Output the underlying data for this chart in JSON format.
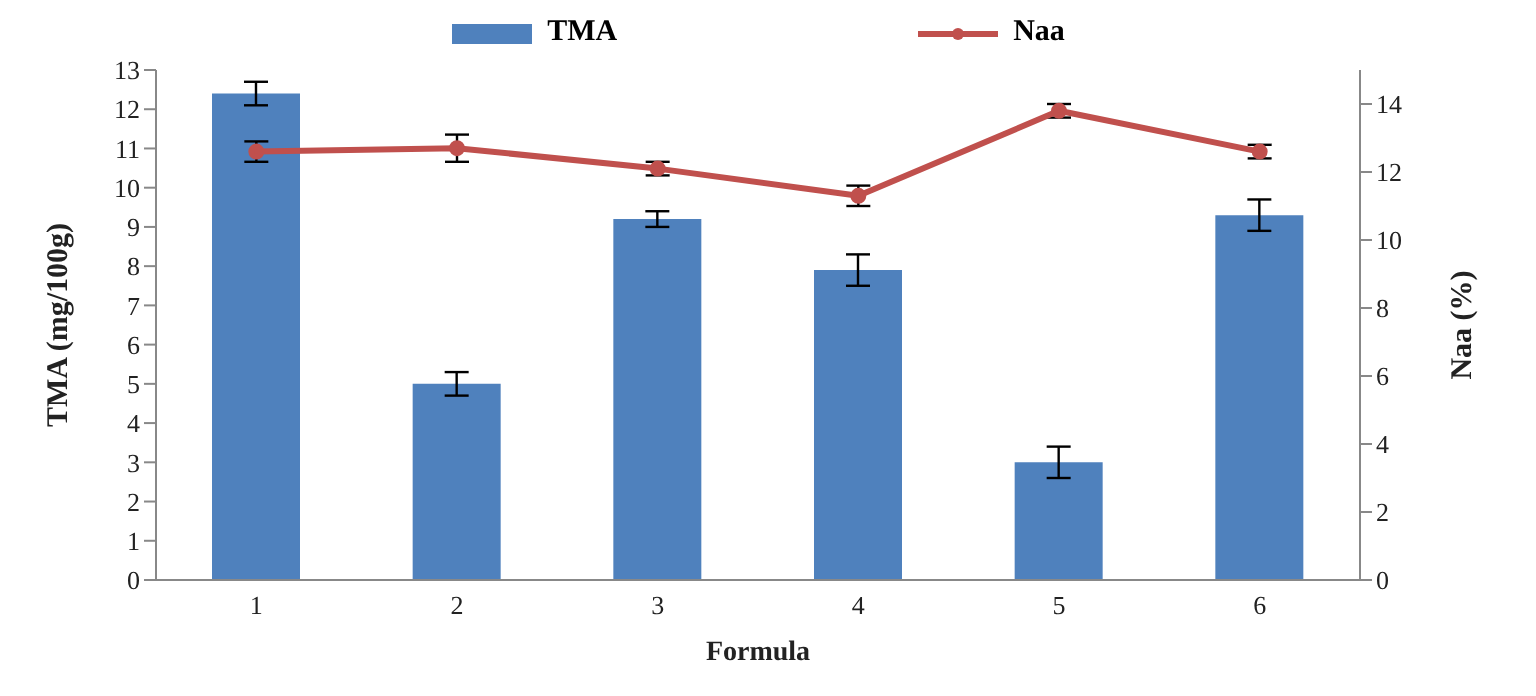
{
  "chart_data": {
    "type": "bar",
    "xlabel": "Formula",
    "ylabel": "TMA  (mg/100g)",
    "y2label": "Naa (%)",
    "categories": [
      "1",
      "2",
      "3",
      "4",
      "5",
      "6"
    ],
    "series": [
      {
        "name": "TMA",
        "color": "#4f81bd",
        "values": [
          12.4,
          5.0,
          9.2,
          7.9,
          3.0,
          9.3
        ],
        "errors": [
          0.3,
          0.3,
          0.2,
          0.4,
          0.4,
          0.4
        ]
      },
      {
        "name": "Naa",
        "type": "line",
        "axis": "y2",
        "color": "#c0504d",
        "values": [
          12.6,
          12.7,
          12.1,
          11.3,
          13.8,
          12.6
        ],
        "errors": [
          0.3,
          0.4,
          0.2,
          0.3,
          0.2,
          0.2
        ]
      }
    ],
    "ylim": [
      0,
      13
    ],
    "yticks": [
      0,
      1,
      2,
      3,
      4,
      5,
      6,
      7,
      8,
      9,
      10,
      11,
      12,
      13
    ],
    "y2lim": [
      0,
      15
    ],
    "y2ticks": [
      0,
      2,
      4,
      6,
      8,
      10,
      12,
      14
    ],
    "grid": false,
    "legend": "top",
    "marker": "circle",
    "line_style": "solid"
  }
}
